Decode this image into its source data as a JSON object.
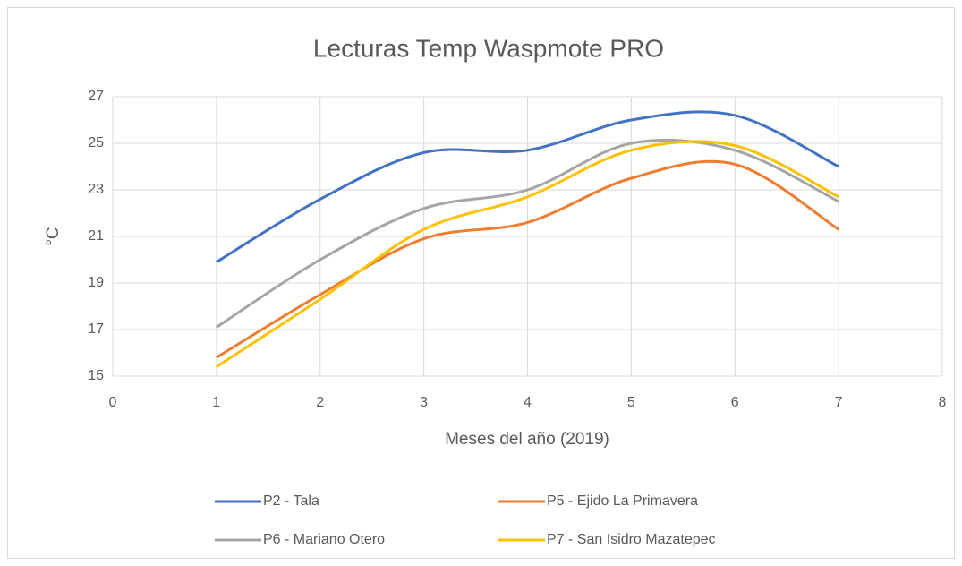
{
  "chart_data": {
    "type": "line",
    "smooth": true,
    "grid": true,
    "title": "Lecturas Temp Waspmote PRO",
    "xlabel": "Meses del año (2019)",
    "ylabel": "°C",
    "x": [
      1,
      2,
      3,
      4,
      5,
      6,
      7
    ],
    "xlim": [
      0,
      8
    ],
    "xticks": [
      0,
      1,
      2,
      3,
      4,
      5,
      6,
      7,
      8
    ],
    "ylim": [
      15,
      27
    ],
    "yticks": [
      15,
      17,
      19,
      21,
      23,
      25,
      27
    ],
    "legend": "bottom",
    "series": [
      {
        "name": "P2 - Tala",
        "color": "#4472c4",
        "values": [
          19.9,
          22.6,
          24.6,
          24.7,
          26.0,
          26.2,
          24.0
        ]
      },
      {
        "name": "P5 - Ejido La Primavera",
        "color": "#ed7d31",
        "values": [
          15.8,
          18.5,
          20.9,
          21.6,
          23.5,
          24.1,
          21.3
        ]
      },
      {
        "name": "P6 - Mariano Otero",
        "color": "#a5a5a5",
        "values": [
          17.1,
          20.0,
          22.2,
          23.0,
          25.0,
          24.7,
          22.5
        ]
      },
      {
        "name": "P7 - San Isidro Mazatepec",
        "color": "#ffc000",
        "values": [
          15.4,
          18.3,
          21.3,
          22.7,
          24.7,
          24.9,
          22.7
        ]
      }
    ]
  }
}
